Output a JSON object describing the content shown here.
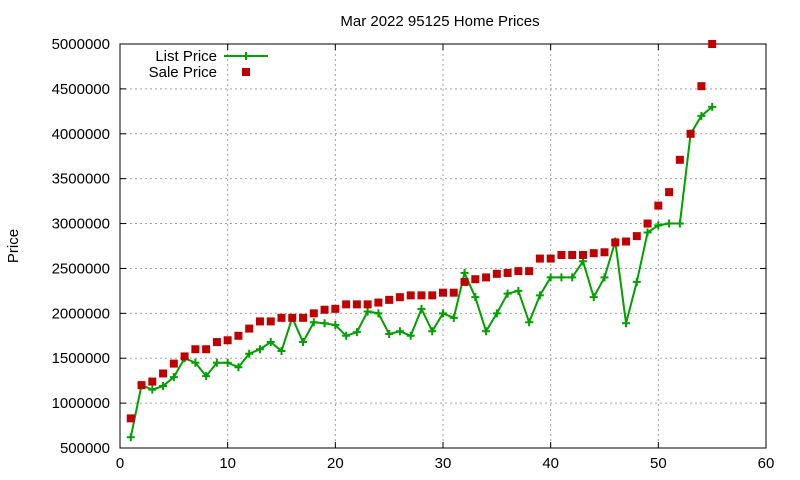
{
  "chart_data": {
    "type": "line",
    "title": "Mar 2022 95125 Home Prices",
    "xlabel": "",
    "ylabel": "Price",
    "xlim": [
      0,
      60
    ],
    "ylim": [
      500000,
      5000000
    ],
    "xticks": [
      "0",
      "10",
      "20",
      "30",
      "40",
      "50",
      "60"
    ],
    "yticks": [
      "500000",
      "1000000",
      "1500000",
      "2000000",
      "2500000",
      "3000000",
      "3500000",
      "4000000",
      "4500000",
      "5000000"
    ],
    "grid": true,
    "legend_position": "top-left",
    "x": [
      1,
      2,
      3,
      4,
      5,
      6,
      7,
      8,
      9,
      10,
      11,
      12,
      13,
      14,
      15,
      16,
      17,
      18,
      19,
      20,
      21,
      22,
      23,
      24,
      25,
      26,
      27,
      28,
      29,
      30,
      31,
      32,
      33,
      34,
      35,
      36,
      37,
      38,
      39,
      40,
      41,
      42,
      43,
      44,
      45,
      46,
      47,
      48,
      49,
      50,
      51,
      52,
      53,
      54,
      55
    ],
    "series": [
      {
        "name": "List Price",
        "color": "#00a000",
        "marker": "plus",
        "values": [
          620000,
          1200000,
          1150000,
          1190000,
          1290000,
          1500000,
          1450000,
          1300000,
          1450000,
          1450000,
          1400000,
          1550000,
          1600000,
          1680000,
          1580000,
          1950000,
          1680000,
          1900000,
          1890000,
          1870000,
          1750000,
          1790000,
          2020000,
          2000000,
          1770000,
          1800000,
          1750000,
          2050000,
          1800000,
          2000000,
          1950000,
          2450000,
          2180000,
          1800000,
          2000000,
          2220000,
          2250000,
          1900000,
          2200000,
          2400000,
          2400000,
          2400000,
          2580000,
          2180000,
          2400000,
          2800000,
          1890000,
          2350000,
          2900000,
          2980000,
          3000000,
          3000000,
          4000000,
          4200000,
          4300000
        ]
      },
      {
        "name": "Sale Price",
        "color": "#c00000",
        "marker": "square",
        "values": [
          830000,
          1200000,
          1240000,
          1330000,
          1440000,
          1520000,
          1600000,
          1600000,
          1680000,
          1700000,
          1750000,
          1830000,
          1910000,
          1910000,
          1950000,
          1950000,
          1950000,
          2000000,
          2040000,
          2050000,
          2100000,
          2100000,
          2100000,
          2120000,
          2150000,
          2180000,
          2200000,
          2200000,
          2200000,
          2230000,
          2230000,
          2350000,
          2380000,
          2400000,
          2440000,
          2450000,
          2470000,
          2470000,
          2610000,
          2610000,
          2650000,
          2650000,
          2650000,
          2670000,
          2680000,
          2790000,
          2800000,
          2860000,
          3000000,
          3200000,
          3350000,
          3710000,
          4000000,
          4530000,
          5000000
        ]
      }
    ]
  }
}
